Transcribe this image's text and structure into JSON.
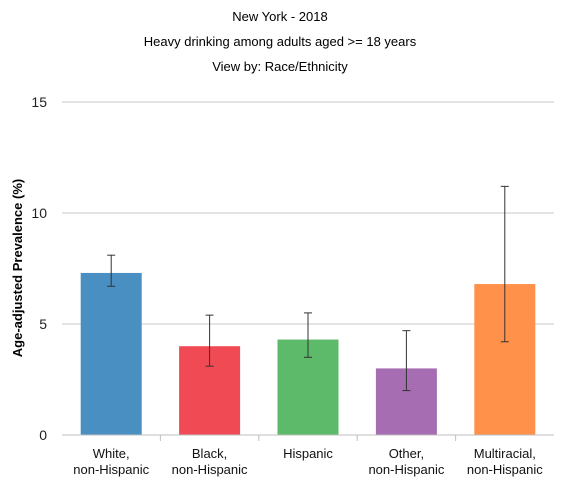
{
  "chart_data": {
    "type": "bar",
    "title": "New York - 2018",
    "subtitle": "Heavy drinking among adults aged >= 18 years",
    "view_by": "View by: Race/Ethnicity",
    "ylabel": "Age-adjusted Prevalence (%)",
    "xlabel": "",
    "ylim": [
      0,
      15
    ],
    "yticks": [
      0,
      5,
      10,
      15
    ],
    "grid": true,
    "categories": [
      [
        "White,",
        "non-Hispanic"
      ],
      [
        "Black,",
        "non-Hispanic"
      ],
      [
        "Hispanic"
      ],
      [
        "Other,",
        "non-Hispanic"
      ],
      [
        "Multiracial,",
        "non-Hispanic"
      ]
    ],
    "values": [
      7.3,
      4.0,
      4.3,
      3.0,
      6.8
    ],
    "error_low": [
      6.7,
      3.1,
      3.5,
      2.0,
      4.2
    ],
    "error_high": [
      8.1,
      5.4,
      5.5,
      4.7,
      11.2
    ],
    "colors": [
      "#4a8fc2",
      "#f04a55",
      "#5dba6a",
      "#a66db3",
      "#ff914a"
    ]
  }
}
